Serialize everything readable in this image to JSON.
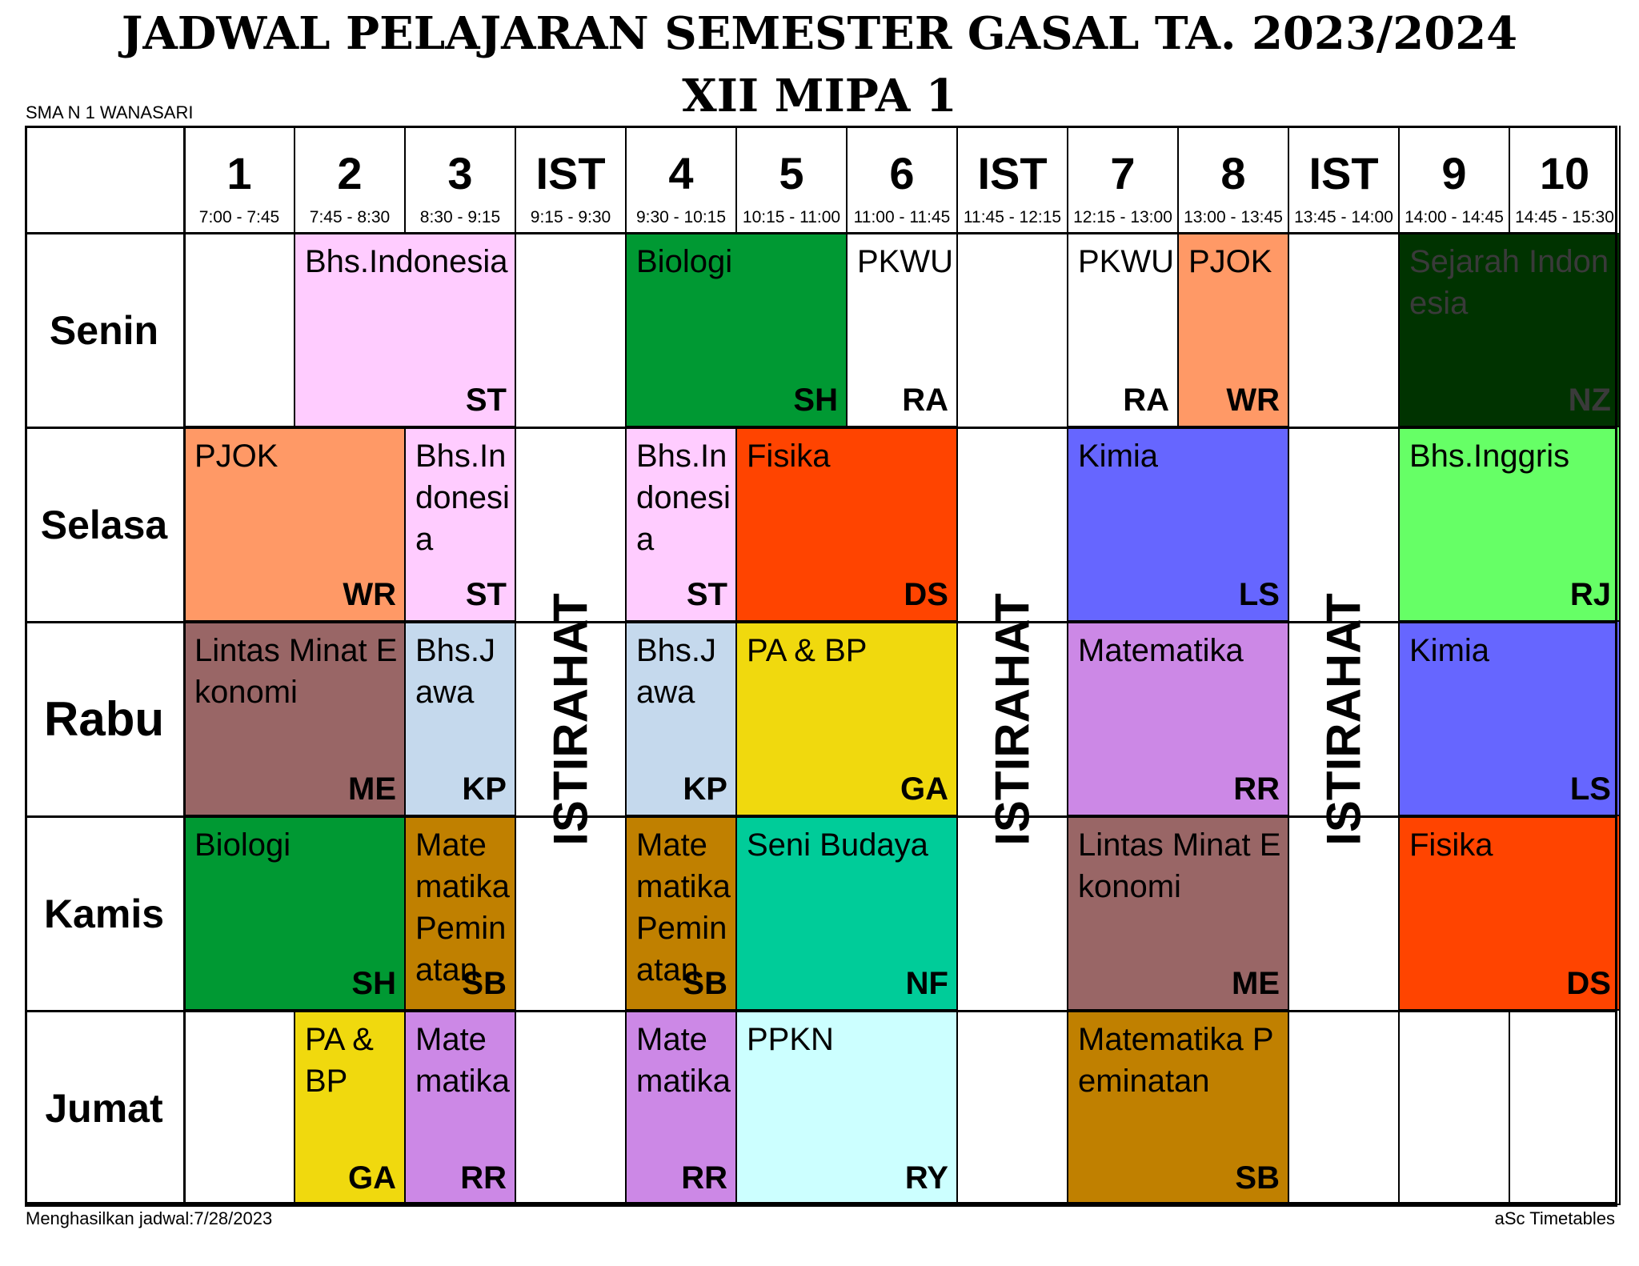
{
  "header": {
    "title": "JADWAL PELAJARAN SEMESTER GASAL TA. 2023/2024",
    "class_name": "XII MIPA 1",
    "school": "SMA N 1 WANASARI"
  },
  "footer": {
    "generated": "Menghasilkan jadwal:7/28/2023",
    "software": "aSc Timetables"
  },
  "periods": [
    {
      "label": "1",
      "time": "7:00 - 7:45"
    },
    {
      "label": "2",
      "time": "7:45 - 8:30"
    },
    {
      "label": "3",
      "time": "8:30 - 9:15"
    },
    {
      "label": "IST",
      "time": "9:15 - 9:30"
    },
    {
      "label": "4",
      "time": "9:30 - 10:15"
    },
    {
      "label": "5",
      "time": "10:15 - 11:00"
    },
    {
      "label": "6",
      "time": "11:00 - 11:45"
    },
    {
      "label": "IST",
      "time": "11:45 - 12:15"
    },
    {
      "label": "7",
      "time": "12:15 - 13:00"
    },
    {
      "label": "8",
      "time": "13:00 - 13:45"
    },
    {
      "label": "IST",
      "time": "13:45 - 14:00"
    },
    {
      "label": "9",
      "time": "14:00 - 14:45"
    },
    {
      "label": "10",
      "time": "14:45 - 15:30"
    }
  ],
  "days": [
    "Senin",
    "Selasa",
    "Rabu",
    "Kamis",
    "Jumat"
  ],
  "break_label": "ISTIRAHAT",
  "lessons": [
    {
      "day": 0,
      "period": 1,
      "span": 2,
      "subject": "Bhs.Indonesia",
      "teacher": "ST",
      "color": "#ffccff"
    },
    {
      "day": 0,
      "period": 4,
      "span": 2,
      "subject": "Biologi",
      "teacher": "SH",
      "color": "#009933"
    },
    {
      "day": 0,
      "period": 6,
      "span": 1,
      "subject": "PKWU",
      "teacher": "RA",
      "color": "#ffffff"
    },
    {
      "day": 0,
      "period": 8,
      "span": 1,
      "subject": "PKWU",
      "teacher": "RA",
      "color": "#ffffff"
    },
    {
      "day": 0,
      "period": 9,
      "span": 1,
      "subject": "PJOK",
      "teacher": "WR",
      "color": "#ff9966"
    },
    {
      "day": 0,
      "period": 11,
      "span": 2,
      "subject": "Sejarah Indonesia",
      "teacher": "NZ",
      "color": "#003300"
    },
    {
      "day": 1,
      "period": 0,
      "span": 2,
      "subject": "PJOK",
      "teacher": "WR",
      "color": "#ff9966"
    },
    {
      "day": 1,
      "period": 2,
      "span": 1,
      "subject": "Bhs.Indonesia",
      "teacher": "ST",
      "color": "#ffccff"
    },
    {
      "day": 1,
      "period": 4,
      "span": 1,
      "subject": "Bhs.Indonesia",
      "teacher": "ST",
      "color": "#ffccff"
    },
    {
      "day": 1,
      "period": 5,
      "span": 2,
      "subject": "Fisika",
      "teacher": "DS",
      "color": "#ff4400"
    },
    {
      "day": 1,
      "period": 8,
      "span": 2,
      "subject": "Kimia",
      "teacher": "LS",
      "color": "#6666ff"
    },
    {
      "day": 1,
      "period": 11,
      "span": 2,
      "subject": "Bhs.Inggris",
      "teacher": "RJ",
      "color": "#66ff66"
    },
    {
      "day": 2,
      "period": 0,
      "span": 2,
      "subject": "Lintas Minat Ekonomi",
      "teacher": "ME",
      "color": "#996666"
    },
    {
      "day": 2,
      "period": 2,
      "span": 1,
      "subject": "Bhs.Jawa",
      "teacher": "KP",
      "color": "#c5d9ed"
    },
    {
      "day": 2,
      "period": 4,
      "span": 1,
      "subject": "Bhs.Jawa",
      "teacher": "KP",
      "color": "#c5d9ed"
    },
    {
      "day": 2,
      "period": 5,
      "span": 2,
      "subject": "PA & BP",
      "teacher": "GA",
      "color": "#f0d90e"
    },
    {
      "day": 2,
      "period": 8,
      "span": 2,
      "subject": "Matematika",
      "teacher": "RR",
      "color": "#cc88e6"
    },
    {
      "day": 2,
      "period": 11,
      "span": 2,
      "subject": "Kimia",
      "teacher": "LS",
      "color": "#6666ff"
    },
    {
      "day": 3,
      "period": 0,
      "span": 2,
      "subject": "Biologi",
      "teacher": "SH",
      "color": "#009933"
    },
    {
      "day": 3,
      "period": 2,
      "span": 1,
      "subject": "Matematika Peminatan",
      "teacher": "SB",
      "color": "#c08000"
    },
    {
      "day": 3,
      "period": 4,
      "span": 1,
      "subject": "Matematika Peminatan",
      "teacher": "SB",
      "color": "#c08000"
    },
    {
      "day": 3,
      "period": 5,
      "span": 2,
      "subject": "Seni Budaya",
      "teacher": "NF",
      "color": "#00cc99"
    },
    {
      "day": 3,
      "period": 8,
      "span": 2,
      "subject": "Lintas Minat Ekonomi",
      "teacher": "ME",
      "color": "#996666"
    },
    {
      "day": 3,
      "period": 11,
      "span": 2,
      "subject": "Fisika",
      "teacher": "DS",
      "color": "#ff4400"
    },
    {
      "day": 4,
      "period": 1,
      "span": 1,
      "subject": "PA & BP",
      "teacher": "GA",
      "color": "#f0d90e"
    },
    {
      "day": 4,
      "period": 2,
      "span": 1,
      "subject": "Matematika",
      "teacher": "RR",
      "color": "#cc88e6"
    },
    {
      "day": 4,
      "period": 4,
      "span": 1,
      "subject": "Matematika",
      "teacher": "RR",
      "color": "#cc88e6"
    },
    {
      "day": 4,
      "period": 5,
      "span": 2,
      "subject": "PPKN",
      "teacher": "RY",
      "color": "#ccffff"
    },
    {
      "day": 4,
      "period": 8,
      "span": 2,
      "subject": "Matematika Peminatan",
      "teacher": "SB",
      "color": "#c08000"
    }
  ]
}
